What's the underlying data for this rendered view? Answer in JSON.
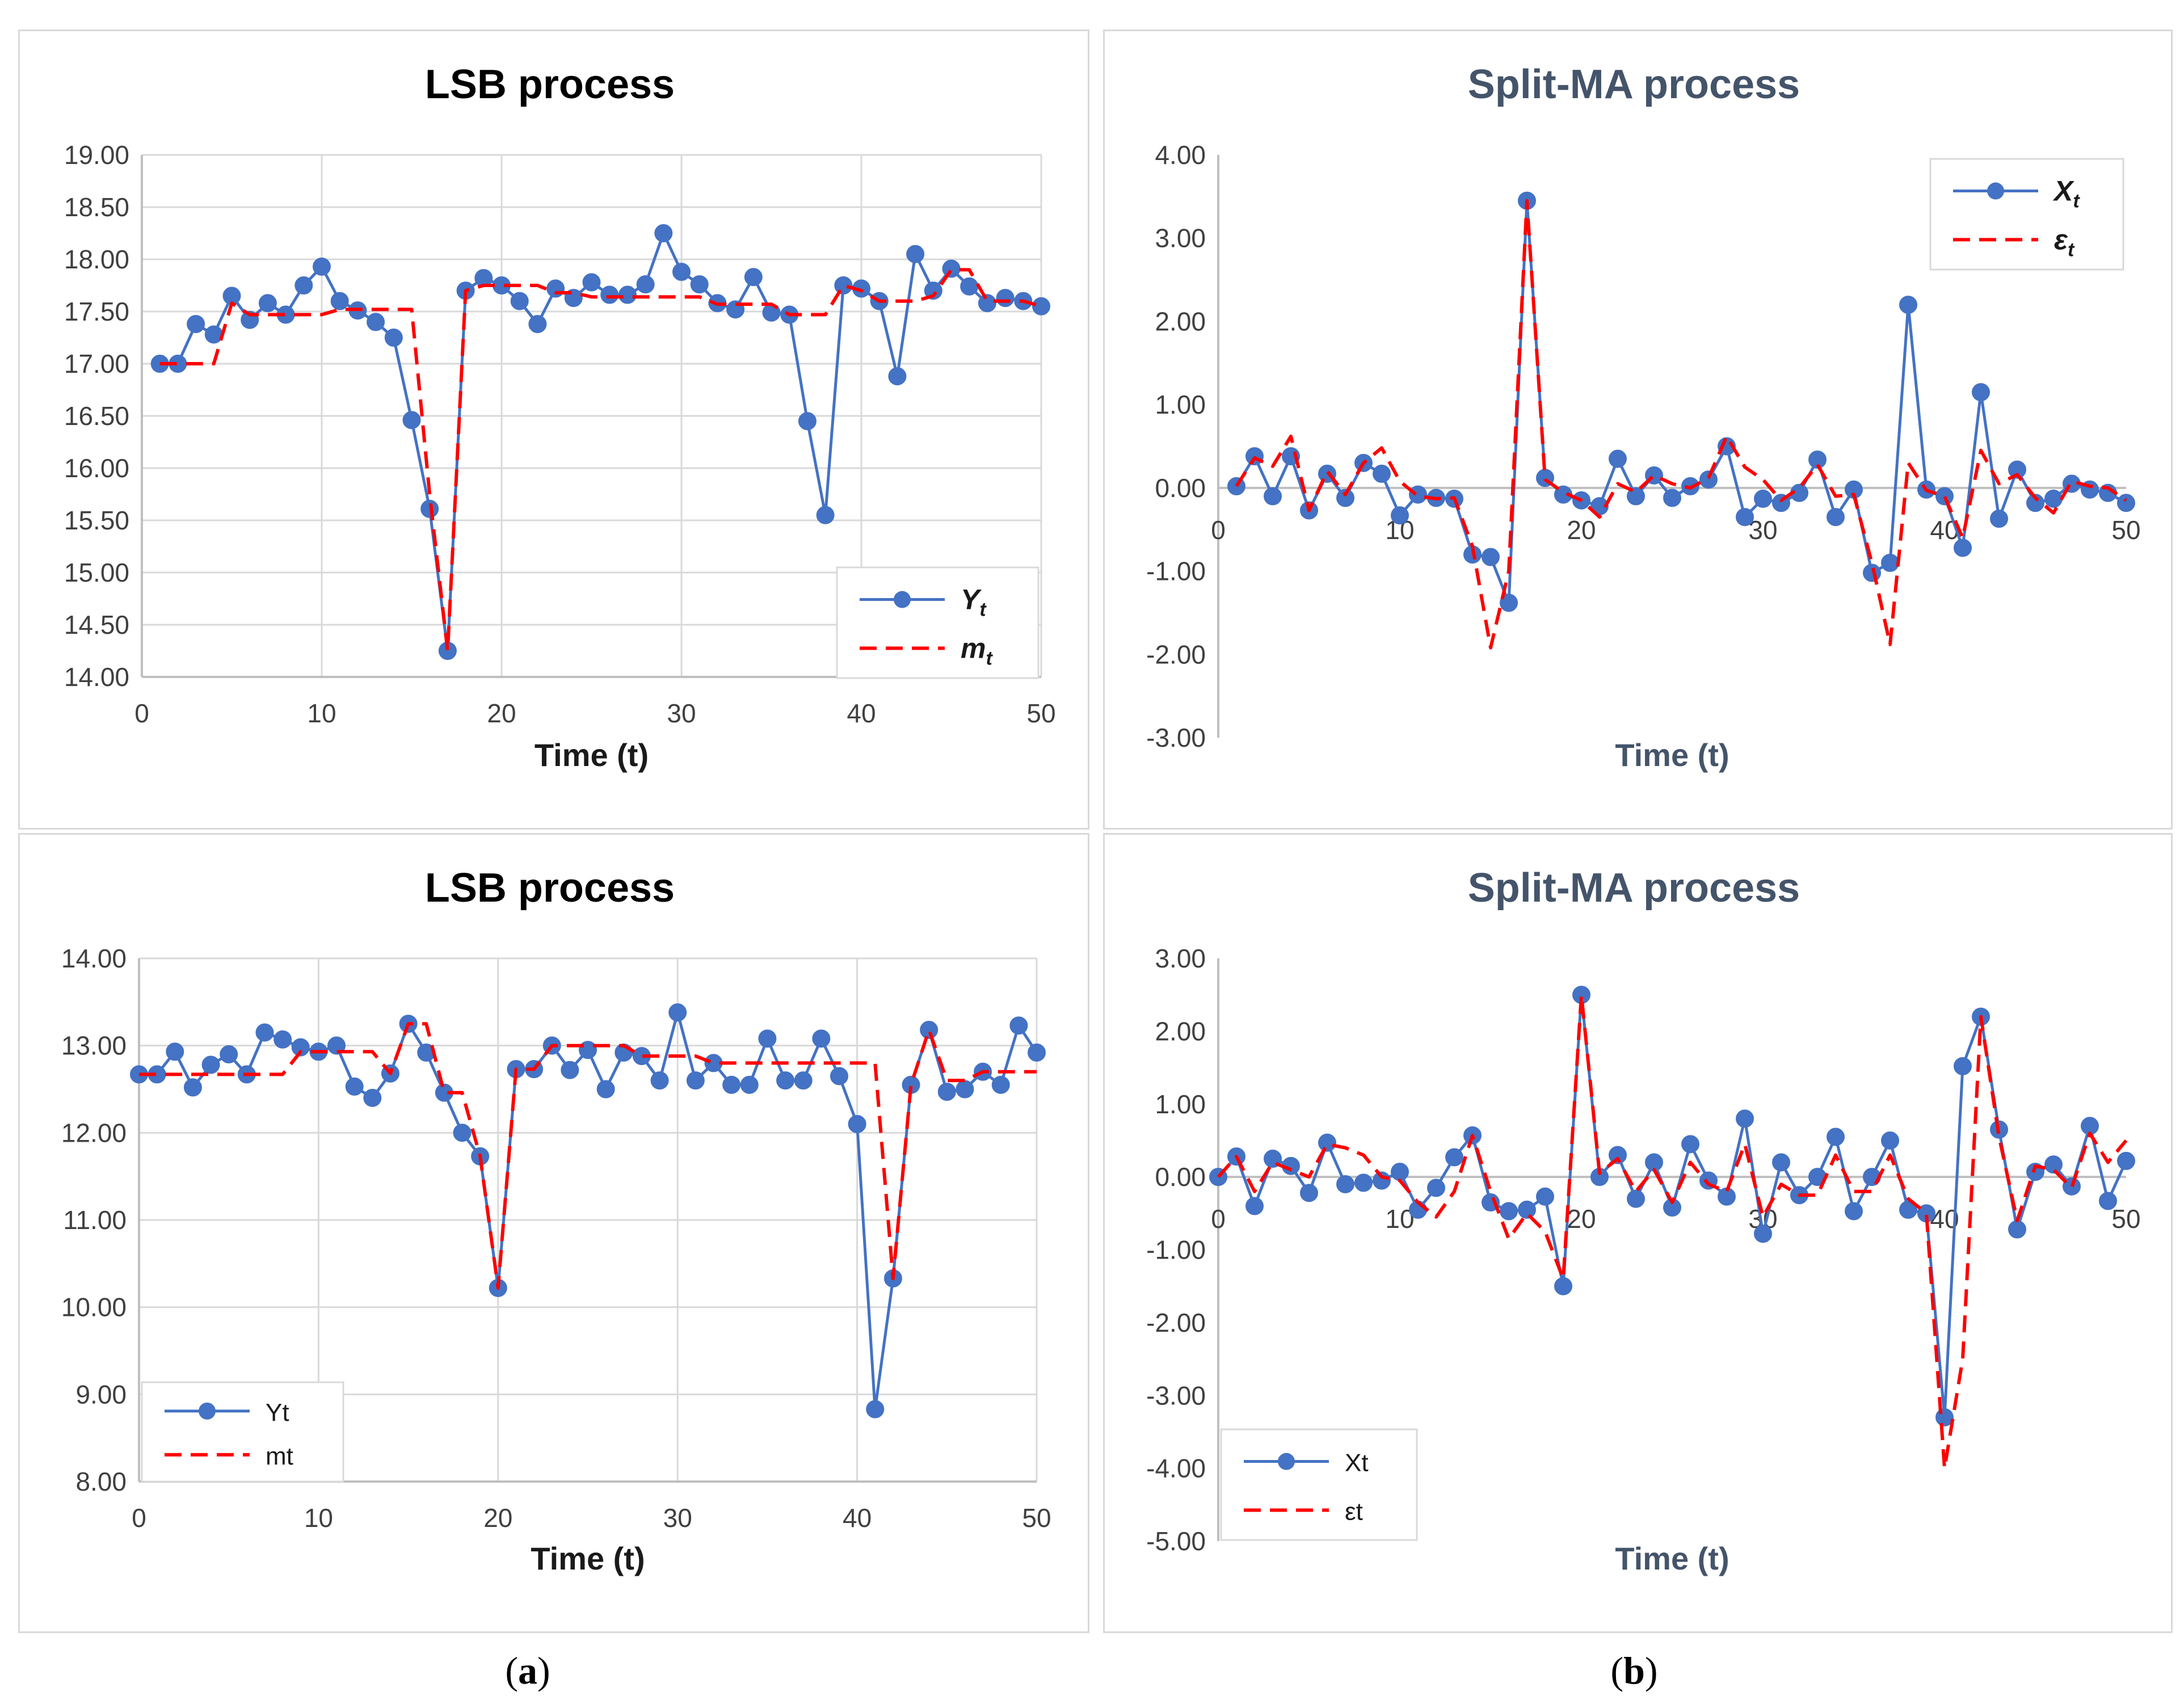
{
  "subfigure_labels": [
    "a",
    "b"
  ],
  "chart_data": [
    {
      "type": "line",
      "title": "LSB process",
      "xlabel": "Time (t)",
      "ylabel": "",
      "xlim": [
        0,
        50
      ],
      "ylim": [
        14,
        19
      ],
      "x_ticks": [
        0,
        10,
        20,
        30,
        40,
        50
      ],
      "y_ticks": [
        14,
        14.5,
        15,
        15.5,
        16,
        16.5,
        17,
        17.5,
        18,
        18.5,
        19
      ],
      "tick_decimals": 2,
      "grid": true,
      "legend_position": "bottom-right",
      "legend_italic_subscript": true,
      "series": [
        {
          "name": "Yt",
          "label_main": "Y",
          "label_sub": "t",
          "style": "markers-line",
          "color": "#4472c4",
          "x": [
            1,
            2,
            3,
            4,
            5,
            6,
            7,
            8,
            9,
            10,
            11,
            12,
            13,
            14,
            15,
            16,
            17,
            18,
            19,
            20,
            21,
            22,
            23,
            24,
            25,
            26,
            27,
            28,
            29,
            30,
            31,
            32,
            33,
            34,
            35,
            36,
            37,
            38,
            39,
            40,
            41,
            42,
            43,
            44,
            45,
            46,
            47,
            48,
            49,
            50
          ],
          "values": [
            17.0,
            17.0,
            17.38,
            17.28,
            17.65,
            17.42,
            17.58,
            17.47,
            17.75,
            17.93,
            17.6,
            17.51,
            17.4,
            17.25,
            16.46,
            15.61,
            14.25,
            17.7,
            17.82,
            17.75,
            17.6,
            17.38,
            17.72,
            17.63,
            17.78,
            17.66,
            17.66,
            17.76,
            18.25,
            17.88,
            17.76,
            17.58,
            17.52,
            17.83,
            17.49,
            17.47,
            16.45,
            15.55,
            17.75,
            17.72,
            17.6,
            16.88,
            18.05,
            17.7,
            17.91,
            17.74,
            17.58,
            17.63,
            17.6,
            17.55
          ]
        },
        {
          "name": "mt",
          "label_main": "m",
          "label_sub": "t",
          "style": "dashed",
          "color": "#ff0000",
          "x": [
            1,
            2,
            3,
            4,
            5,
            6,
            7,
            8,
            9,
            10,
            11,
            12,
            13,
            14,
            15,
            16,
            17,
            18,
            19,
            20,
            21,
            22,
            23,
            24,
            25,
            26,
            27,
            28,
            29,
            30,
            31,
            32,
            33,
            34,
            35,
            36,
            37,
            38,
            39,
            40,
            41,
            42,
            43,
            44,
            45,
            46,
            47,
            48,
            49,
            50
          ],
          "values": [
            17.0,
            17.0,
            17.0,
            17.0,
            17.58,
            17.47,
            17.47,
            17.47,
            17.47,
            17.47,
            17.52,
            17.52,
            17.52,
            17.52,
            17.52,
            15.75,
            14.25,
            17.7,
            17.75,
            17.75,
            17.75,
            17.75,
            17.68,
            17.68,
            17.64,
            17.64,
            17.64,
            17.64,
            17.64,
            17.64,
            17.64,
            17.57,
            17.57,
            17.57,
            17.57,
            17.47,
            17.47,
            17.47,
            17.75,
            17.7,
            17.6,
            17.6,
            17.6,
            17.65,
            17.9,
            17.9,
            17.6,
            17.6,
            17.6,
            17.55
          ]
        }
      ]
    },
    {
      "type": "line",
      "title": "Split-MA process",
      "title_color": "#44546a",
      "xlabel": "Time (t)",
      "ylabel": "",
      "xlim": [
        0,
        50
      ],
      "ylim": [
        -3,
        4
      ],
      "x_ticks": [
        0,
        10,
        20,
        30,
        40,
        50
      ],
      "y_ticks": [
        -3,
        -2,
        -1,
        0,
        1,
        2,
        3,
        4
      ],
      "tick_decimals": 2,
      "x_axis_at_zero": true,
      "grid": false,
      "legend_position": "top-right",
      "legend_italic_subscript": true,
      "series": [
        {
          "name": "Xt",
          "label_main": "X",
          "label_sub": "t",
          "style": "markers-line",
          "color": "#4472c4",
          "x": [
            1,
            2,
            3,
            4,
            5,
            6,
            7,
            8,
            9,
            10,
            11,
            12,
            13,
            14,
            15,
            16,
            17,
            18,
            19,
            20,
            21,
            22,
            23,
            24,
            25,
            26,
            27,
            28,
            29,
            30,
            31,
            32,
            33,
            34,
            35,
            36,
            37,
            38,
            39,
            40,
            41,
            42,
            43,
            44,
            45,
            46,
            47,
            48,
            49,
            50
          ],
          "values": [
            0.02,
            0.38,
            -0.1,
            0.38,
            -0.27,
            0.17,
            -0.12,
            0.3,
            0.17,
            -0.33,
            -0.08,
            -0.12,
            -0.13,
            -0.8,
            -0.83,
            -1.38,
            3.45,
            0.12,
            -0.08,
            -0.15,
            -0.22,
            0.35,
            -0.1,
            0.15,
            -0.12,
            0.02,
            0.1,
            0.5,
            -0.35,
            -0.13,
            -0.18,
            -0.06,
            0.34,
            -0.35,
            -0.02,
            -1.02,
            -0.9,
            2.2,
            -0.02,
            -0.1,
            -0.72,
            1.15,
            -0.37,
            0.22,
            -0.18,
            -0.13,
            0.05,
            -0.02,
            -0.06,
            -0.18
          ]
        },
        {
          "name": "εt",
          "label_main": "ε",
          "label_sub": "t",
          "style": "dashed",
          "color": "#ff0000",
          "x": [
            1,
            2,
            3,
            4,
            5,
            6,
            7,
            8,
            9,
            10,
            11,
            12,
            13,
            14,
            15,
            16,
            17,
            18,
            19,
            20,
            21,
            22,
            23,
            24,
            25,
            26,
            27,
            28,
            29,
            30,
            31,
            32,
            33,
            34,
            35,
            36,
            37,
            38,
            39,
            40,
            41,
            42,
            43,
            44,
            45,
            46,
            47,
            48,
            49,
            50
          ],
          "values": [
            0.02,
            0.36,
            0.26,
            0.62,
            -0.27,
            0.2,
            -0.08,
            0.3,
            0.48,
            0.08,
            -0.1,
            -0.13,
            -0.12,
            -0.7,
            -1.92,
            -1.0,
            3.45,
            0.1,
            -0.05,
            -0.15,
            -0.35,
            0.05,
            -0.05,
            0.15,
            0.05,
            0.0,
            0.12,
            0.62,
            0.25,
            0.1,
            -0.15,
            0.0,
            0.28,
            -0.1,
            -0.08,
            -0.9,
            -1.88,
            0.3,
            -0.03,
            -0.1,
            -0.6,
            0.45,
            0.05,
            0.16,
            -0.12,
            -0.3,
            0.08,
            0.02,
            0.0,
            -0.15
          ]
        }
      ]
    },
    {
      "type": "line",
      "title": "LSB process",
      "xlabel": "Time (t)",
      "ylabel": "",
      "xlim": [
        0,
        50
      ],
      "ylim": [
        8,
        14
      ],
      "x_ticks": [
        0,
        10,
        20,
        30,
        40,
        50
      ],
      "y_ticks": [
        8,
        9,
        10,
        11,
        12,
        13,
        14
      ],
      "tick_decimals": 2,
      "grid": true,
      "legend_position": "bottom-left",
      "legend_italic_subscript": false,
      "series": [
        {
          "name": "Yt",
          "label_main": "Yt",
          "label_sub": "",
          "style": "markers-line",
          "color": "#4472c4",
          "x": [
            0,
            1,
            2,
            3,
            4,
            5,
            6,
            7,
            8,
            9,
            10,
            11,
            12,
            13,
            14,
            15,
            16,
            17,
            18,
            19,
            20,
            21,
            22,
            23,
            24,
            25,
            26,
            27,
            28,
            29,
            30,
            31,
            32,
            33,
            34,
            35,
            36,
            37,
            38,
            39,
            40,
            41,
            42,
            43,
            44,
            45,
            46,
            47,
            48,
            49,
            50
          ],
          "values": [
            12.67,
            12.67,
            12.93,
            12.52,
            12.78,
            12.9,
            12.67,
            13.15,
            13.07,
            12.98,
            12.93,
            13.0,
            12.53,
            12.4,
            12.68,
            13.25,
            12.92,
            12.46,
            12.0,
            11.73,
            10.22,
            12.73,
            12.73,
            13.0,
            12.72,
            12.95,
            12.5,
            12.92,
            12.88,
            12.6,
            13.38,
            12.6,
            12.8,
            12.55,
            12.55,
            13.08,
            12.6,
            12.6,
            13.08,
            12.65,
            12.1,
            8.83,
            10.33,
            12.55,
            13.18,
            12.47,
            12.5,
            12.7,
            12.55,
            13.23,
            12.92
          ]
        },
        {
          "name": "mt",
          "label_main": "mt",
          "label_sub": "",
          "style": "dashed",
          "color": "#ff0000",
          "x": [
            0,
            1,
            2,
            3,
            4,
            5,
            6,
            7,
            8,
            9,
            10,
            11,
            12,
            13,
            14,
            15,
            16,
            17,
            18,
            19,
            20,
            21,
            22,
            23,
            24,
            25,
            26,
            27,
            28,
            29,
            30,
            31,
            32,
            33,
            34,
            35,
            36,
            37,
            38,
            39,
            40,
            41,
            42,
            43,
            44,
            45,
            46,
            47,
            48,
            49,
            50
          ],
          "values": [
            12.67,
            12.67,
            12.67,
            12.67,
            12.67,
            12.67,
            12.67,
            12.67,
            12.67,
            12.93,
            12.93,
            12.93,
            12.93,
            12.93,
            12.68,
            13.25,
            13.25,
            12.46,
            12.46,
            11.73,
            10.22,
            12.73,
            12.73,
            13.0,
            13.0,
            13.0,
            13.0,
            13.0,
            12.88,
            12.88,
            12.88,
            12.88,
            12.8,
            12.8,
            12.8,
            12.8,
            12.8,
            12.8,
            12.8,
            12.8,
            12.8,
            12.8,
            10.33,
            12.55,
            13.18,
            12.6,
            12.6,
            12.7,
            12.7,
            12.7,
            12.7
          ]
        }
      ]
    },
    {
      "type": "line",
      "title": "Split-MA process",
      "title_color": "#44546a",
      "xlabel": "Time (t)",
      "ylabel": "",
      "xlim": [
        0,
        50
      ],
      "ylim": [
        -5,
        3
      ],
      "x_ticks": [
        0,
        10,
        20,
        30,
        40,
        50
      ],
      "y_ticks": [
        -5,
        -4,
        -3,
        -2,
        -1,
        0,
        1,
        2,
        3
      ],
      "tick_decimals": 2,
      "x_axis_at_zero": true,
      "grid": false,
      "legend_position": "bottom-left",
      "legend_italic_subscript": false,
      "series": [
        {
          "name": "Xt",
          "label_main": "Xt",
          "label_sub": "",
          "style": "markers-line",
          "color": "#4472c4",
          "x": [
            0,
            1,
            2,
            3,
            4,
            5,
            6,
            7,
            8,
            9,
            10,
            11,
            12,
            13,
            14,
            15,
            16,
            17,
            18,
            19,
            20,
            21,
            22,
            23,
            24,
            25,
            26,
            27,
            28,
            29,
            30,
            31,
            32,
            33,
            34,
            35,
            36,
            37,
            38,
            39,
            40,
            41,
            42,
            43,
            44,
            45,
            46,
            47,
            48,
            49,
            50
          ],
          "values": [
            0.0,
            0.28,
            -0.4,
            0.25,
            0.15,
            -0.22,
            0.47,
            -0.1,
            -0.08,
            -0.05,
            0.07,
            -0.45,
            -0.15,
            0.27,
            0.57,
            -0.35,
            -0.47,
            -0.45,
            -0.27,
            -1.5,
            2.5,
            0.0,
            0.3,
            -0.3,
            0.2,
            -0.42,
            0.45,
            -0.05,
            -0.27,
            0.8,
            -0.78,
            0.2,
            -0.25,
            0.0,
            0.55,
            -0.47,
            0.0,
            0.5,
            -0.45,
            -0.5,
            -3.3,
            1.52,
            2.2,
            0.65,
            -0.72,
            0.07,
            0.17,
            -0.13,
            0.7,
            -0.33,
            0.22
          ]
        },
        {
          "name": "εt",
          "label_main": "εt",
          "label_sub": "",
          "style": "dashed",
          "color": "#ff0000",
          "x": [
            0,
            1,
            2,
            3,
            4,
            5,
            6,
            7,
            8,
            9,
            10,
            11,
            12,
            13,
            14,
            15,
            16,
            17,
            18,
            19,
            20,
            21,
            22,
            23,
            24,
            25,
            26,
            27,
            28,
            29,
            30,
            31,
            32,
            33,
            34,
            35,
            36,
            37,
            38,
            39,
            40,
            41,
            42,
            43,
            44,
            45,
            46,
            47,
            48,
            49,
            50
          ],
          "values": [
            0.0,
            0.28,
            -0.2,
            0.2,
            0.1,
            0.0,
            0.45,
            0.4,
            0.3,
            0.0,
            -0.05,
            -0.35,
            -0.55,
            -0.2,
            0.57,
            -0.2,
            -0.85,
            -0.5,
            -0.75,
            -1.4,
            2.5,
            0.05,
            0.25,
            -0.2,
            0.1,
            -0.35,
            0.2,
            -0.1,
            -0.2,
            0.45,
            -0.55,
            -0.1,
            -0.25,
            -0.25,
            0.3,
            -0.2,
            -0.2,
            0.3,
            -0.3,
            -0.5,
            -4.0,
            -2.5,
            2.2,
            0.55,
            -0.6,
            0.15,
            0.1,
            -0.15,
            0.6,
            0.2,
            0.5
          ]
        }
      ]
    }
  ]
}
